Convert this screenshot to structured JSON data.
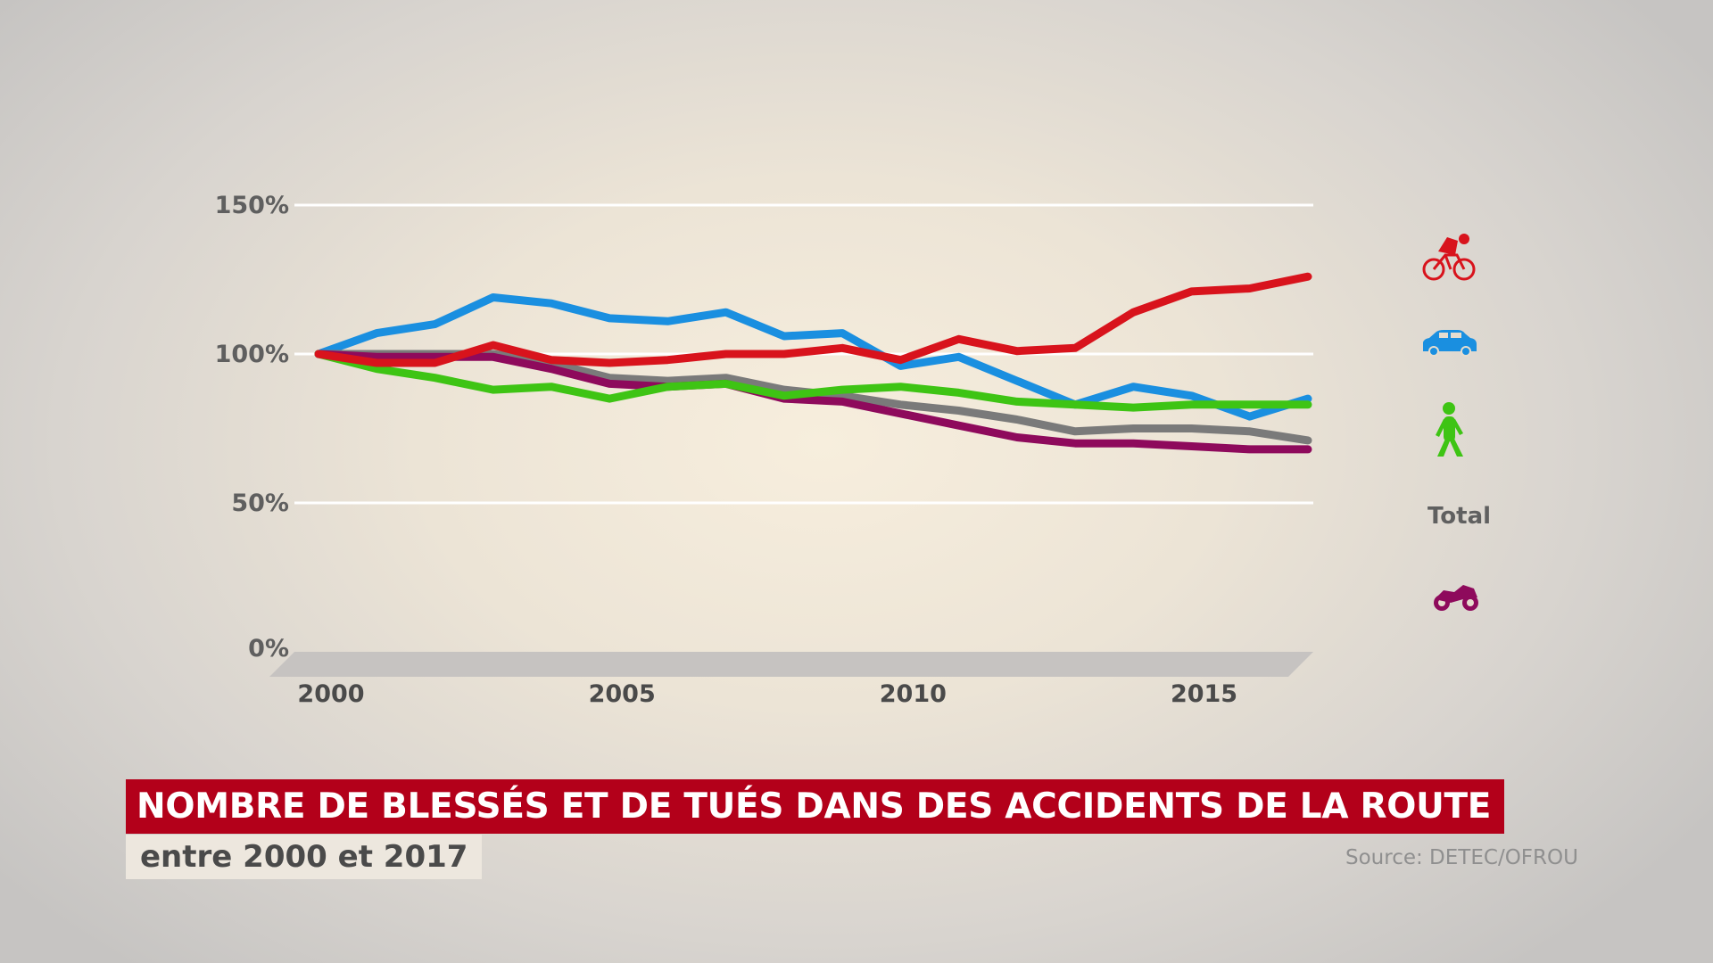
{
  "title": "NOMBRE DE BLESSÉS ET DE TUÉS DANS DES ACCIDENTS DE LA ROUTE",
  "subtitle": "entre 2000 et 2017",
  "source": "Source: DETEC/OFROU",
  "chart_data": {
    "type": "line",
    "x": [
      2000,
      2001,
      2002,
      2003,
      2004,
      2005,
      2006,
      2007,
      2008,
      2009,
      2010,
      2011,
      2012,
      2013,
      2014,
      2015,
      2016,
      2017
    ],
    "ylim": [
      0,
      150
    ],
    "xlim": [
      2000,
      2017
    ],
    "grid": true,
    "legend_placement": "right",
    "y_ticks": [
      {
        "value": 0,
        "label": "0%"
      },
      {
        "value": 50,
        "label": "50%"
      },
      {
        "value": 100,
        "label": "100%"
      },
      {
        "value": 150,
        "label": "150%"
      }
    ],
    "x_ticks": [
      {
        "value": 2000,
        "label": "2000"
      },
      {
        "value": 2005,
        "label": "2005"
      },
      {
        "value": 2010,
        "label": "2010"
      },
      {
        "value": 2015,
        "label": "2015"
      }
    ],
    "series": [
      {
        "icon": "car-icon",
        "color": "#1a8fe0",
        "values": [
          100,
          107,
          110,
          119,
          117,
          112,
          111,
          114,
          106,
          107,
          96,
          99,
          91,
          83,
          89,
          86,
          79,
          85
        ]
      },
      {
        "label": "Total",
        "color": "#7a7a7a",
        "values": [
          100,
          100,
          100,
          100,
          97,
          92,
          91,
          92,
          88,
          86,
          83,
          81,
          78,
          74,
          75,
          75,
          74,
          71
        ]
      },
      {
        "icon": "motorcycle-icon",
        "color": "#8e0a5c",
        "values": [
          100,
          99,
          99,
          99,
          95,
          90,
          89,
          90,
          85,
          84,
          80,
          76,
          72,
          70,
          70,
          69,
          68,
          68
        ]
      },
      {
        "icon": "pedestrian-icon",
        "color": "#3ec414",
        "values": [
          100,
          95,
          92,
          88,
          89,
          85,
          89,
          90,
          86,
          88,
          89,
          87,
          84,
          83,
          82,
          83,
          83,
          83
        ]
      },
      {
        "icon": "bicycle-icon",
        "color": "#d8131c",
        "values": [
          100,
          97,
          97,
          103,
          98,
          97,
          98,
          100,
          100,
          102,
          98,
          105,
          101,
          102,
          114,
          121,
          122,
          126
        ]
      }
    ],
    "legend": [
      {
        "icon": "bicycle-icon",
        "color": "#d8131c"
      },
      {
        "icon": "car-icon",
        "color": "#1a8fe0"
      },
      {
        "icon": "pedestrian-icon",
        "color": "#3ec414"
      },
      {
        "label": "Total",
        "color": "#7a7a7a"
      },
      {
        "icon": "motorcycle-icon",
        "color": "#8e0a5c"
      }
    ]
  }
}
